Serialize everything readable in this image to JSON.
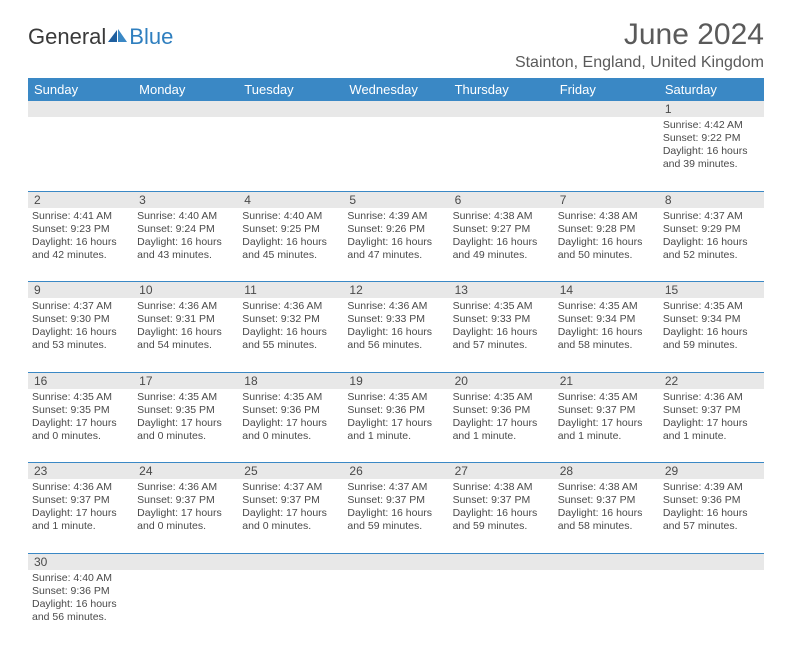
{
  "logo": {
    "word1": "General",
    "word2": "Blue"
  },
  "title": "June 2024",
  "location": "Stainton, England, United Kingdom",
  "day_headers": [
    "Sunday",
    "Monday",
    "Tuesday",
    "Wednesday",
    "Thursday",
    "Friday",
    "Saturday"
  ],
  "colors": {
    "header_bg": "#3a88c5",
    "header_text": "#ffffff",
    "daynum_bg": "#e8e8e8",
    "cell_border": "#3a88c5",
    "text": "#4a4a4a",
    "logo_blue": "#2f7fbf"
  },
  "weeks": [
    {
      "nums": [
        "",
        "",
        "",
        "",
        "",
        "",
        "1"
      ],
      "cells": [
        null,
        null,
        null,
        null,
        null,
        null,
        {
          "sunrise": "Sunrise: 4:42 AM",
          "sunset": "Sunset: 9:22 PM",
          "d1": "Daylight: 16 hours",
          "d2": "and 39 minutes."
        }
      ]
    },
    {
      "nums": [
        "2",
        "3",
        "4",
        "5",
        "6",
        "7",
        "8"
      ],
      "cells": [
        {
          "sunrise": "Sunrise: 4:41 AM",
          "sunset": "Sunset: 9:23 PM",
          "d1": "Daylight: 16 hours",
          "d2": "and 42 minutes."
        },
        {
          "sunrise": "Sunrise: 4:40 AM",
          "sunset": "Sunset: 9:24 PM",
          "d1": "Daylight: 16 hours",
          "d2": "and 43 minutes."
        },
        {
          "sunrise": "Sunrise: 4:40 AM",
          "sunset": "Sunset: 9:25 PM",
          "d1": "Daylight: 16 hours",
          "d2": "and 45 minutes."
        },
        {
          "sunrise": "Sunrise: 4:39 AM",
          "sunset": "Sunset: 9:26 PM",
          "d1": "Daylight: 16 hours",
          "d2": "and 47 minutes."
        },
        {
          "sunrise": "Sunrise: 4:38 AM",
          "sunset": "Sunset: 9:27 PM",
          "d1": "Daylight: 16 hours",
          "d2": "and 49 minutes."
        },
        {
          "sunrise": "Sunrise: 4:38 AM",
          "sunset": "Sunset: 9:28 PM",
          "d1": "Daylight: 16 hours",
          "d2": "and 50 minutes."
        },
        {
          "sunrise": "Sunrise: 4:37 AM",
          "sunset": "Sunset: 9:29 PM",
          "d1": "Daylight: 16 hours",
          "d2": "and 52 minutes."
        }
      ]
    },
    {
      "nums": [
        "9",
        "10",
        "11",
        "12",
        "13",
        "14",
        "15"
      ],
      "cells": [
        {
          "sunrise": "Sunrise: 4:37 AM",
          "sunset": "Sunset: 9:30 PM",
          "d1": "Daylight: 16 hours",
          "d2": "and 53 minutes."
        },
        {
          "sunrise": "Sunrise: 4:36 AM",
          "sunset": "Sunset: 9:31 PM",
          "d1": "Daylight: 16 hours",
          "d2": "and 54 minutes."
        },
        {
          "sunrise": "Sunrise: 4:36 AM",
          "sunset": "Sunset: 9:32 PM",
          "d1": "Daylight: 16 hours",
          "d2": "and 55 minutes."
        },
        {
          "sunrise": "Sunrise: 4:36 AM",
          "sunset": "Sunset: 9:33 PM",
          "d1": "Daylight: 16 hours",
          "d2": "and 56 minutes."
        },
        {
          "sunrise": "Sunrise: 4:35 AM",
          "sunset": "Sunset: 9:33 PM",
          "d1": "Daylight: 16 hours",
          "d2": "and 57 minutes."
        },
        {
          "sunrise": "Sunrise: 4:35 AM",
          "sunset": "Sunset: 9:34 PM",
          "d1": "Daylight: 16 hours",
          "d2": "and 58 minutes."
        },
        {
          "sunrise": "Sunrise: 4:35 AM",
          "sunset": "Sunset: 9:34 PM",
          "d1": "Daylight: 16 hours",
          "d2": "and 59 minutes."
        }
      ]
    },
    {
      "nums": [
        "16",
        "17",
        "18",
        "19",
        "20",
        "21",
        "22"
      ],
      "cells": [
        {
          "sunrise": "Sunrise: 4:35 AM",
          "sunset": "Sunset: 9:35 PM",
          "d1": "Daylight: 17 hours",
          "d2": "and 0 minutes."
        },
        {
          "sunrise": "Sunrise: 4:35 AM",
          "sunset": "Sunset: 9:35 PM",
          "d1": "Daylight: 17 hours",
          "d2": "and 0 minutes."
        },
        {
          "sunrise": "Sunrise: 4:35 AM",
          "sunset": "Sunset: 9:36 PM",
          "d1": "Daylight: 17 hours",
          "d2": "and 0 minutes."
        },
        {
          "sunrise": "Sunrise: 4:35 AM",
          "sunset": "Sunset: 9:36 PM",
          "d1": "Daylight: 17 hours",
          "d2": "and 1 minute."
        },
        {
          "sunrise": "Sunrise: 4:35 AM",
          "sunset": "Sunset: 9:36 PM",
          "d1": "Daylight: 17 hours",
          "d2": "and 1 minute."
        },
        {
          "sunrise": "Sunrise: 4:35 AM",
          "sunset": "Sunset: 9:37 PM",
          "d1": "Daylight: 17 hours",
          "d2": "and 1 minute."
        },
        {
          "sunrise": "Sunrise: 4:36 AM",
          "sunset": "Sunset: 9:37 PM",
          "d1": "Daylight: 17 hours",
          "d2": "and 1 minute."
        }
      ]
    },
    {
      "nums": [
        "23",
        "24",
        "25",
        "26",
        "27",
        "28",
        "29"
      ],
      "cells": [
        {
          "sunrise": "Sunrise: 4:36 AM",
          "sunset": "Sunset: 9:37 PM",
          "d1": "Daylight: 17 hours",
          "d2": "and 1 minute."
        },
        {
          "sunrise": "Sunrise: 4:36 AM",
          "sunset": "Sunset: 9:37 PM",
          "d1": "Daylight: 17 hours",
          "d2": "and 0 minutes."
        },
        {
          "sunrise": "Sunrise: 4:37 AM",
          "sunset": "Sunset: 9:37 PM",
          "d1": "Daylight: 17 hours",
          "d2": "and 0 minutes."
        },
        {
          "sunrise": "Sunrise: 4:37 AM",
          "sunset": "Sunset: 9:37 PM",
          "d1": "Daylight: 16 hours",
          "d2": "and 59 minutes."
        },
        {
          "sunrise": "Sunrise: 4:38 AM",
          "sunset": "Sunset: 9:37 PM",
          "d1": "Daylight: 16 hours",
          "d2": "and 59 minutes."
        },
        {
          "sunrise": "Sunrise: 4:38 AM",
          "sunset": "Sunset: 9:37 PM",
          "d1": "Daylight: 16 hours",
          "d2": "and 58 minutes."
        },
        {
          "sunrise": "Sunrise: 4:39 AM",
          "sunset": "Sunset: 9:36 PM",
          "d1": "Daylight: 16 hours",
          "d2": "and 57 minutes."
        }
      ]
    },
    {
      "nums": [
        "30",
        "",
        "",
        "",
        "",
        "",
        ""
      ],
      "cells": [
        {
          "sunrise": "Sunrise: 4:40 AM",
          "sunset": "Sunset: 9:36 PM",
          "d1": "Daylight: 16 hours",
          "d2": "and 56 minutes."
        },
        null,
        null,
        null,
        null,
        null,
        null
      ]
    }
  ]
}
